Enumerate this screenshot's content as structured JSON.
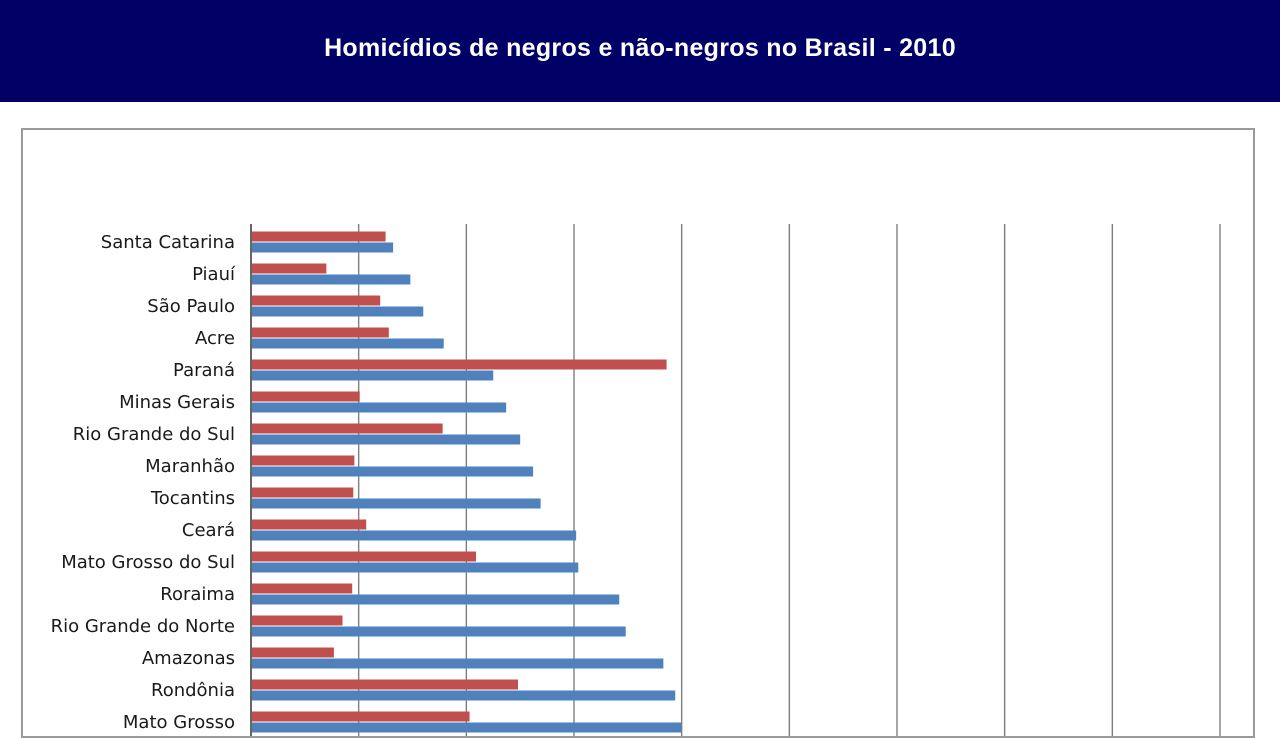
{
  "page": {
    "title": "Homicídios de negros e não-negros no Brasil - 2010"
  },
  "colors": {
    "header_bg": "#000066",
    "series_red": "#c0504d",
    "series_blue": "#4f81bd",
    "gridline": "#7f7f7f"
  },
  "chart_data": {
    "type": "bar",
    "orientation": "horizontal",
    "title": "",
    "xlabel": "",
    "ylabel": "",
    "grid": true,
    "categories": [
      "Santa Catarina",
      "Piauí",
      "São Paulo",
      "Acre",
      "Paraná",
      "Minas Gerais",
      "Rio Grande do Sul",
      "Maranhão",
      "Tocantins",
      "Ceará",
      "Mato Grosso do Sul",
      "Roraima",
      "Rio Grande do Norte",
      "Amazonas",
      "Rondônia",
      "Mato Grosso"
    ],
    "series": [
      {
        "color": "#c0504d",
        "values": [
          12.5,
          7.0,
          12.0,
          12.8,
          38.6,
          10.1,
          17.8,
          9.6,
          9.5,
          10.7,
          20.9,
          9.4,
          8.5,
          7.7,
          24.8,
          20.3
        ]
      },
      {
        "color": "#4f81bd",
        "values": [
          13.2,
          14.8,
          16.0,
          17.9,
          22.5,
          23.7,
          25.0,
          26.2,
          26.9,
          30.2,
          30.4,
          34.2,
          34.8,
          38.3,
          39.4,
          40.0
        ]
      }
    ],
    "xlim": [
      0,
      90
    ]
  }
}
